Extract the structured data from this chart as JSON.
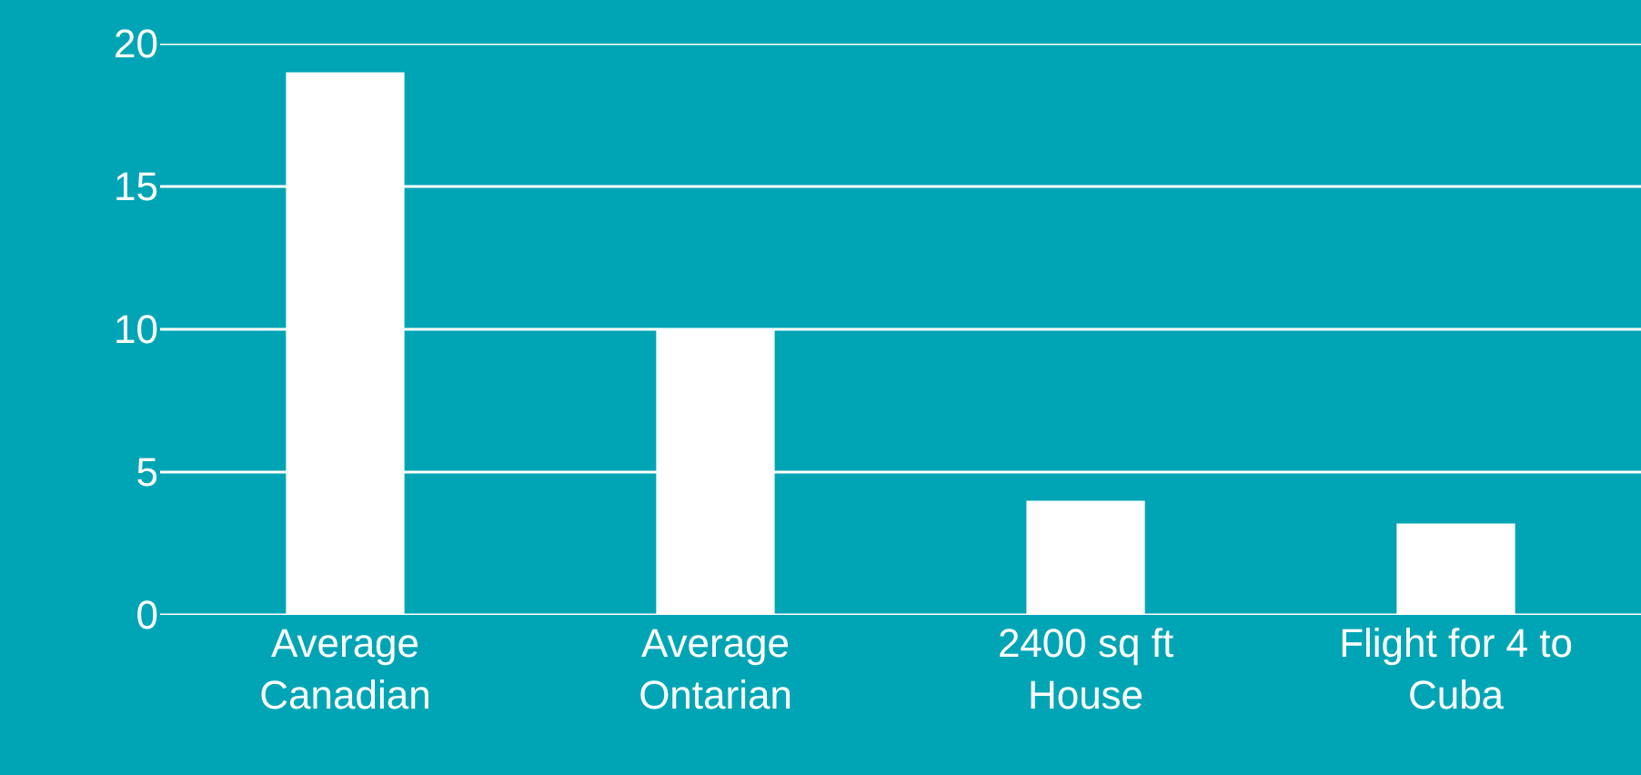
{
  "chart_data": {
    "type": "bar",
    "categories": [
      "Average Canadian",
      "Average Ontarian",
      "2400 sq ft House",
      "Flight for 4 to Cuba"
    ],
    "values": [
      19,
      10,
      4,
      3.2
    ],
    "color": "#ffffff",
    "ylim": [
      0,
      20
    ],
    "yticks": [
      0,
      5,
      10,
      15,
      20
    ],
    "grid": "y"
  }
}
